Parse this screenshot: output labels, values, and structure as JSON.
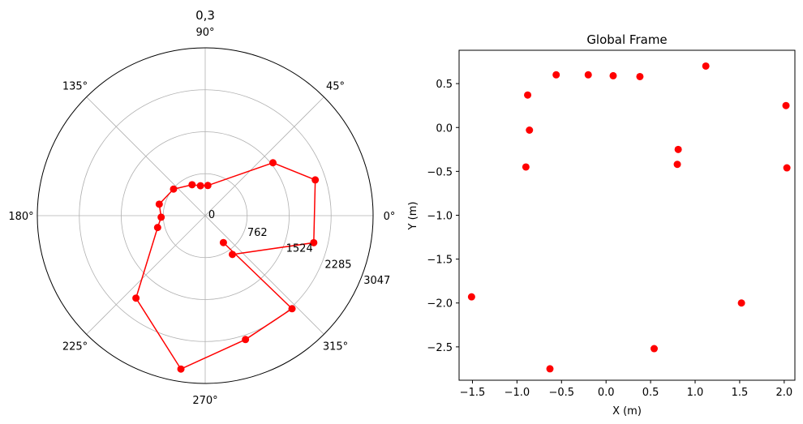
{
  "chart_data": [
    {
      "type": "line",
      "projection": "polar",
      "title": "0,3",
      "marker": "circle",
      "color": "#ff0000",
      "angle_tick_labels": [
        "0°",
        "45°",
        "90°",
        "135°",
        "180°",
        "225°",
        "270°",
        "315°"
      ],
      "radial_tick_labels": [
        "0",
        "762",
        "1524",
        "2285",
        "3047"
      ],
      "radial_ticks": [
        0,
        762,
        1524,
        2285,
        3047
      ],
      "rmax": 3047,
      "grid": true,
      "theta_deg": [
        -55,
        -14,
        18,
        38,
        85,
        99,
        113,
        140,
        166,
        182,
        194,
        230,
        261,
        288,
        313,
        304
      ],
      "r": [
        860,
        2030,
        2100,
        1560,
        550,
        550,
        610,
        750,
        860,
        800,
        890,
        1955,
        2820,
        2365,
        2310,
        590
      ]
    },
    {
      "type": "scatter",
      "title": "Global Frame",
      "xlabel": "X (m)",
      "ylabel": "Y (m)",
      "color": "#ff0000",
      "xlim": [
        -1.65,
        2.12
      ],
      "ylim": [
        -2.88,
        0.88
      ],
      "grid": false,
      "x_ticks": [
        -1.5,
        -1.0,
        -0.5,
        0.0,
        0.5,
        1.0,
        1.5,
        2.0
      ],
      "x_tick_labels": [
        "−1.5",
        "−1.0",
        "−0.5",
        "0.0",
        "0.5",
        "1.0",
        "1.5",
        "2.0"
      ],
      "y_ticks": [
        0.5,
        0.0,
        -0.5,
        -1.0,
        -1.5,
        -2.0,
        -2.5
      ],
      "y_tick_labels": [
        "0.5",
        "0.0",
        "−0.5",
        "−1.0",
        "−1.5",
        "−2.0",
        "−2.5"
      ],
      "x": [
        -0.56,
        -0.2,
        0.08,
        0.38,
        1.12,
        2.02,
        2.03,
        0.81,
        0.8,
        -0.88,
        -0.86,
        -0.9,
        -1.51,
        -0.63,
        0.54,
        1.52
      ],
      "y": [
        0.6,
        0.6,
        0.59,
        0.58,
        0.7,
        0.25,
        -0.46,
        -0.25,
        -0.42,
        0.37,
        -0.03,
        -0.45,
        -1.93,
        -2.75,
        -2.52,
        -2.0
      ]
    }
  ]
}
